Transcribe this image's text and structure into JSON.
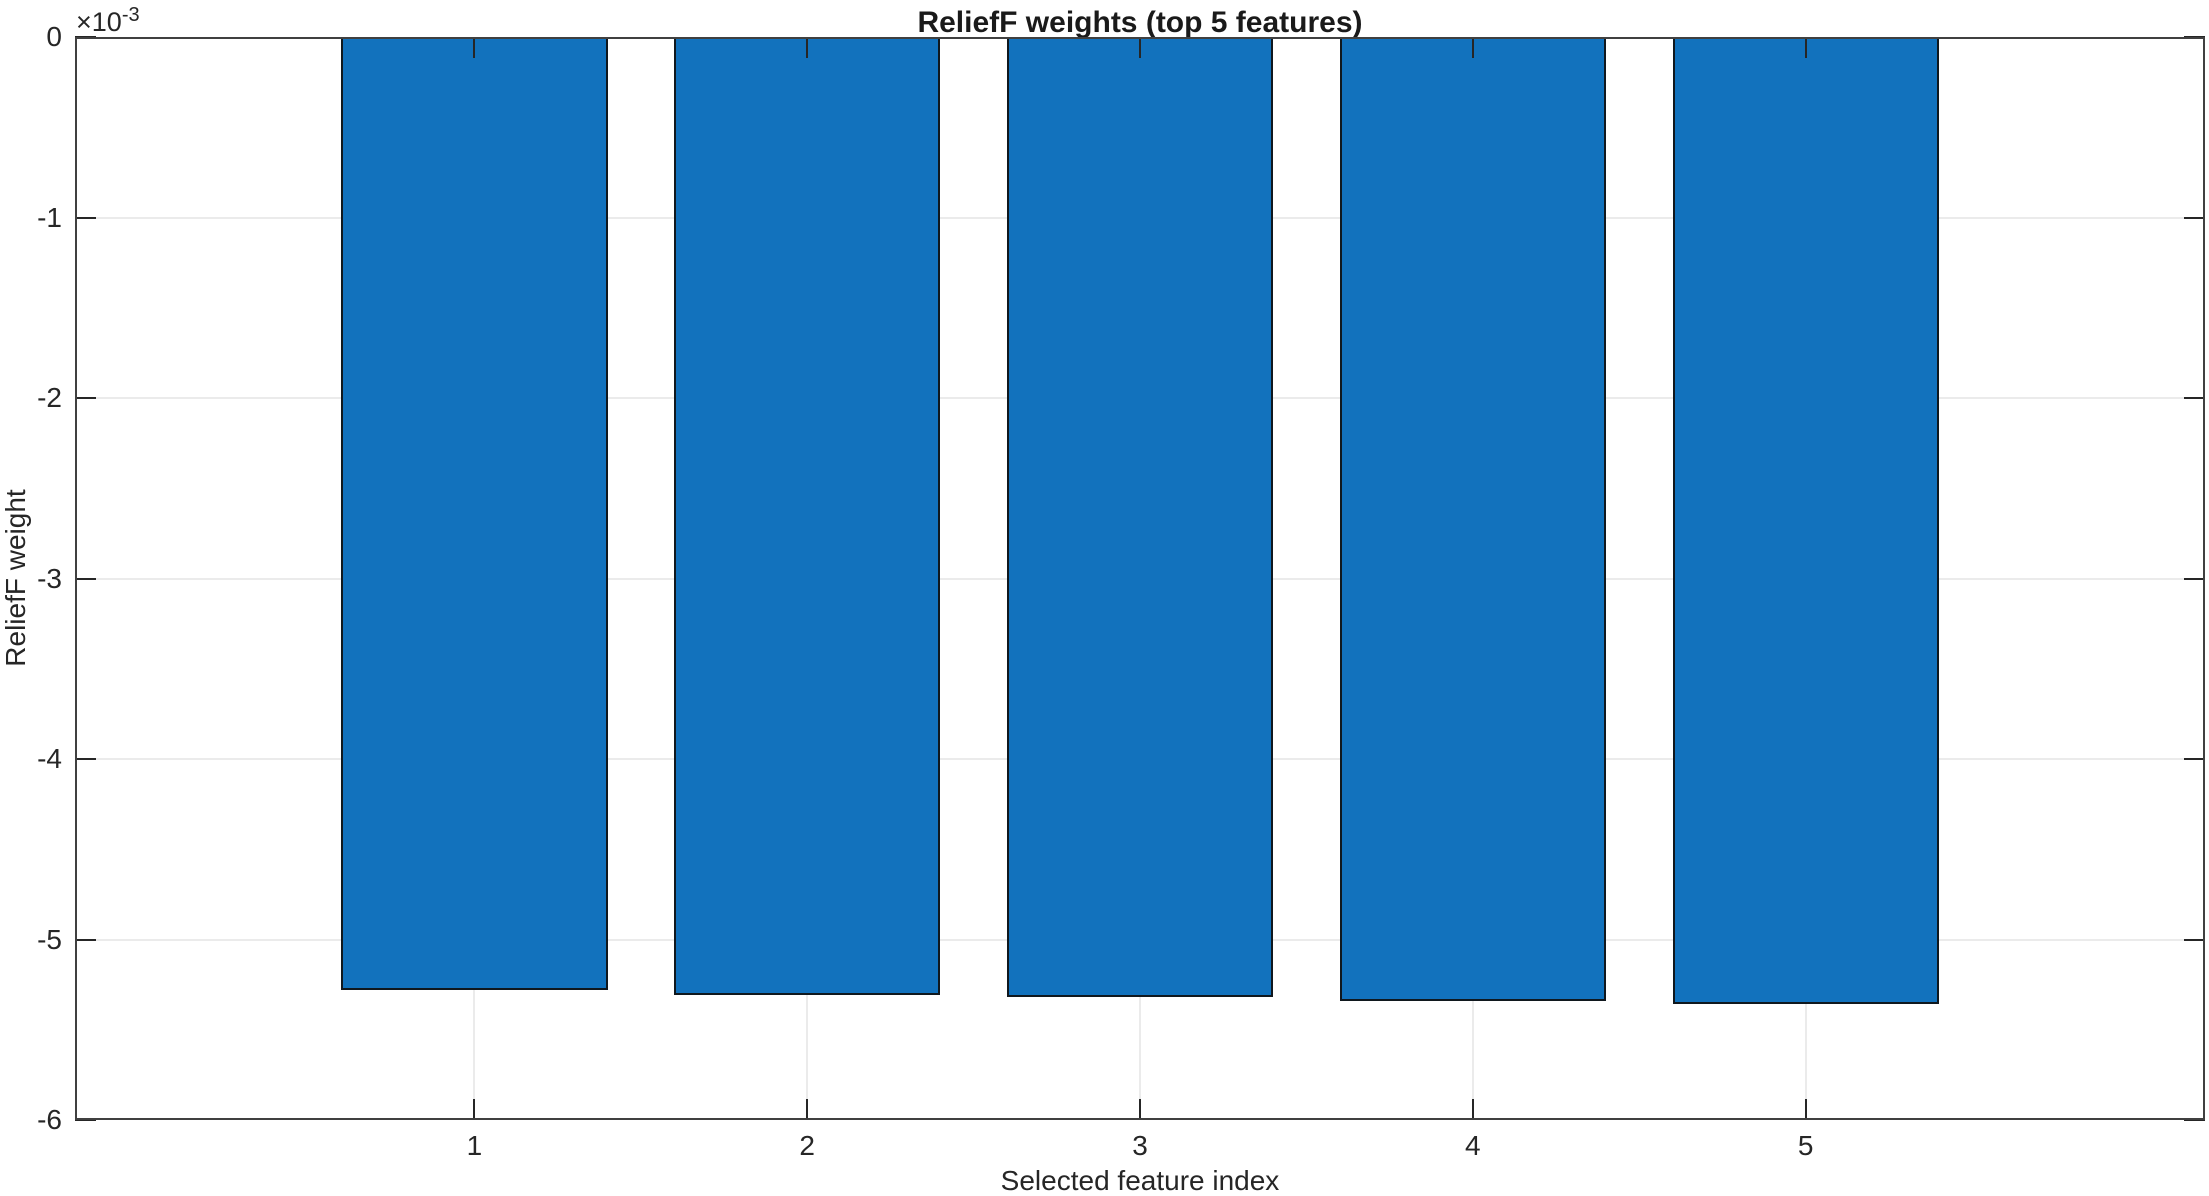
{
  "figure": {
    "background": "#ffffff"
  },
  "chart_data": {
    "type": "bar",
    "title": "ReliefF weights (top 5 features)",
    "xlabel": "Selected feature index",
    "ylabel": "ReliefF weight",
    "y_axis_multiplier_base": "×10",
    "y_axis_multiplier_exponent": "-3",
    "categories": [
      "1",
      "2",
      "3",
      "4",
      "5"
    ],
    "x": [
      1,
      2,
      3,
      4,
      5
    ],
    "values": [
      -0.00528,
      -0.00531,
      -0.00532,
      -0.00534,
      -0.00536
    ],
    "bar_width": 0.8,
    "xlim": [
      -0.2,
      6.2
    ],
    "ylim": [
      -0.006,
      0
    ],
    "yticks": [
      0,
      -0.001,
      -0.002,
      -0.003,
      -0.004,
      -0.005,
      -0.006
    ],
    "ytick_labels": [
      "0",
      "-1",
      "-2",
      "-3",
      "-4",
      "-5",
      "-6"
    ],
    "grid": true,
    "legend": null,
    "colors": {
      "bar_fill": "#1272bd",
      "bar_edge": "#10181e",
      "axis": "#404040",
      "tick": "#262626",
      "grid": "#ebebeb",
      "text": "#262626"
    }
  }
}
